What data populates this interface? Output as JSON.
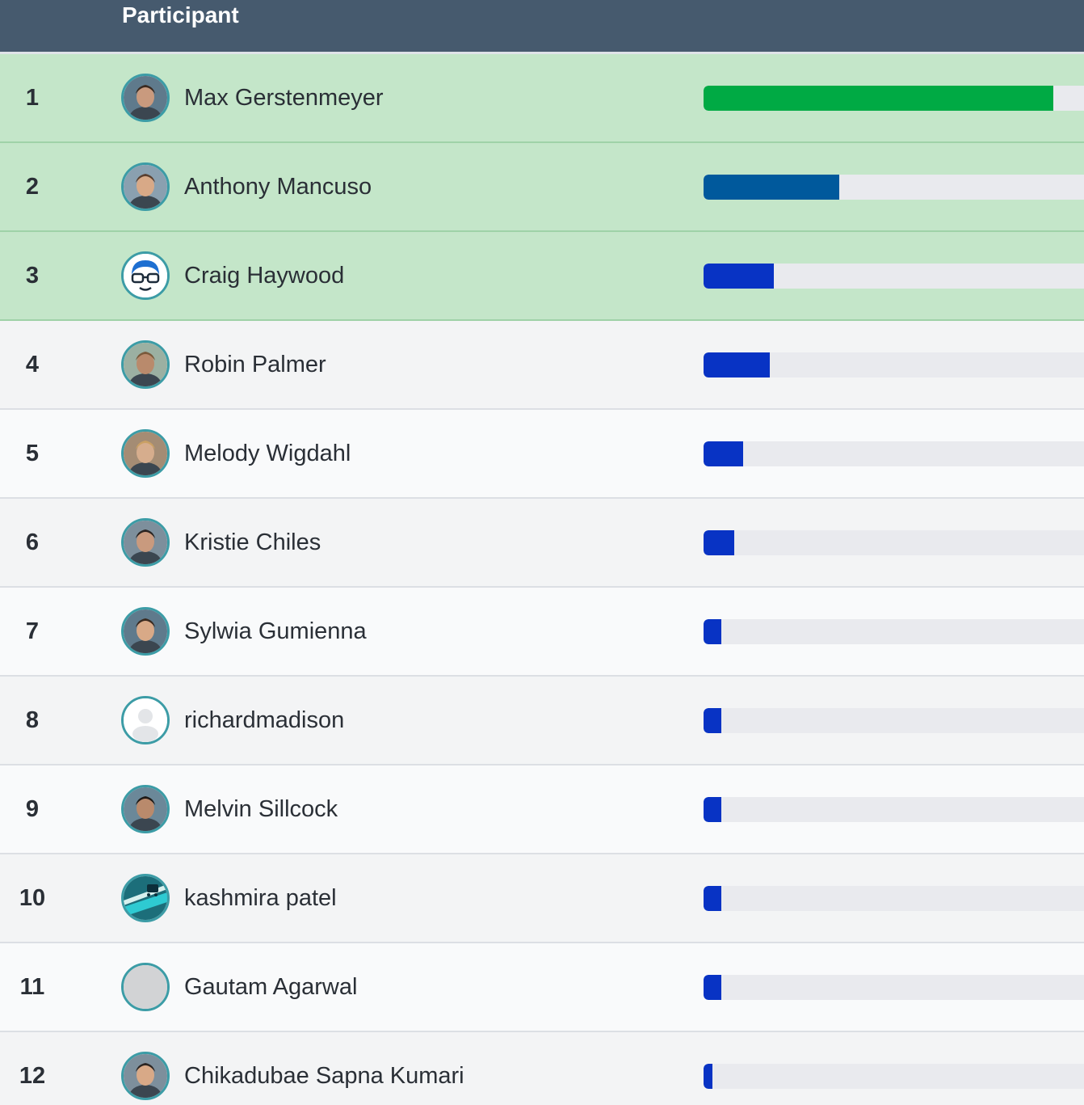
{
  "header": {
    "participant_label": "Participant"
  },
  "colors": {
    "header_bg": "#465a6e",
    "top_row_bg": "#c4e6c9",
    "first_bar": "#00aa44",
    "second_bar": "#00599c",
    "other_bar": "#0833c4",
    "track": "#e9eaee",
    "avatar_ring": "#3c9ca6"
  },
  "participants": [
    {
      "rank": "1",
      "name": "Max Gerstenmeyer",
      "progress": 0.92,
      "avatar": "photo-avatar-icon",
      "highlight": true,
      "bar_color": "#00aa44"
    },
    {
      "rank": "2",
      "name": "Anthony Mancuso",
      "progress": 0.357,
      "avatar": "photo-avatar-icon",
      "highlight": true,
      "bar_color": "#00599c"
    },
    {
      "rank": "3",
      "name": "Craig Haywood",
      "progress": 0.185,
      "avatar": "cartoon-avatar-icon",
      "highlight": true,
      "bar_color": "#0833c4"
    },
    {
      "rank": "4",
      "name": "Robin Palmer",
      "progress": 0.174,
      "avatar": "photo-avatar-icon",
      "highlight": false,
      "bar_color": "#0833c4"
    },
    {
      "rank": "5",
      "name": "Melody Wigdahl",
      "progress": 0.104,
      "avatar": "photo-avatar-icon",
      "highlight": false,
      "bar_color": "#0833c4"
    },
    {
      "rank": "6",
      "name": "Kristie Chiles",
      "progress": 0.081,
      "avatar": "photo-avatar-icon",
      "highlight": false,
      "bar_color": "#0833c4"
    },
    {
      "rank": "7",
      "name": "Sylwia Gumienna",
      "progress": 0.047,
      "avatar": "photo-avatar-icon",
      "highlight": false,
      "bar_color": "#0833c4"
    },
    {
      "rank": "8",
      "name": "richardmadison",
      "progress": 0.047,
      "avatar": "default-user-icon",
      "highlight": false,
      "bar_color": "#0833c4"
    },
    {
      "rank": "9",
      "name": "Melvin Sillcock",
      "progress": 0.047,
      "avatar": "photo-avatar-icon",
      "highlight": false,
      "bar_color": "#0833c4"
    },
    {
      "rank": "10",
      "name": "kashmira patel",
      "progress": 0.047,
      "avatar": "logo-avatar-icon",
      "highlight": false,
      "bar_color": "#0833c4"
    },
    {
      "rank": "11",
      "name": "Gautam Agarwal",
      "progress": 0.047,
      "avatar": "blank-avatar-icon",
      "highlight": false,
      "bar_color": "#0833c4"
    },
    {
      "rank": "12",
      "name": "Chikadubae Sapna Kumari",
      "progress": 0.023,
      "avatar": "photo-avatar-icon",
      "highlight": false,
      "bar_color": "#0833c4"
    }
  ]
}
